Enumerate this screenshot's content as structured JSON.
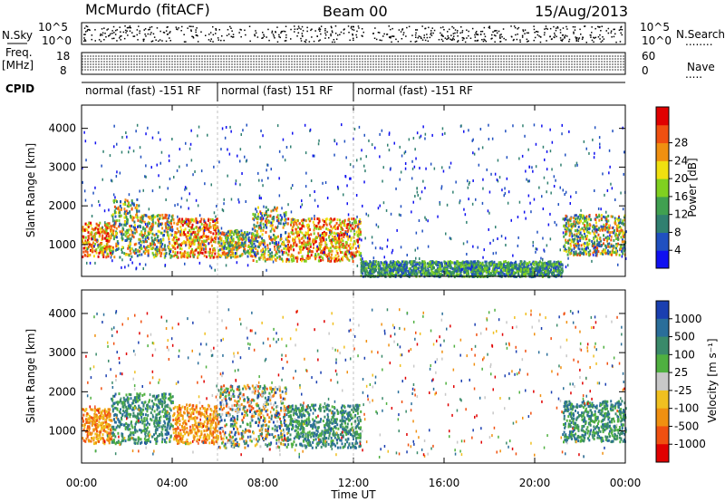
{
  "header": {
    "station": "McMurdo (fitACF)",
    "beam": "Beam 00",
    "date": "15/Aug/2013"
  },
  "side_labels": {
    "nsky": "N.Sky",
    "freq_line1": "Freq.",
    "freq_line2": "[MHz]",
    "cpid": "CPID",
    "nsearch": "N.Search",
    "nsearch_dots": "........",
    "nave": "Nave",
    "nave_dots": "....."
  },
  "noise_panel": {
    "left_ticks": [
      "10^5",
      "10^0"
    ],
    "right_ticks": [
      "10^5",
      "10^0"
    ]
  },
  "freq_panel": {
    "left_ticks": [
      "18",
      "8"
    ],
    "right_ticks": [
      "60",
      "0"
    ]
  },
  "cpid_segments": [
    {
      "label": "normal (fast) -151 RF",
      "start": 0,
      "end": 6
    },
    {
      "label": "normal (fast) 151 RF",
      "start": 6,
      "end": 12
    },
    {
      "label": "normal (fast) -151 RF",
      "start": 12,
      "end": 24
    }
  ],
  "x_axis": {
    "label": "Time UT",
    "ticks": [
      "00:00",
      "04:00",
      "08:00",
      "12:00",
      "16:00",
      "20:00",
      "00:00"
    ],
    "range_hours": [
      0,
      24
    ]
  },
  "y_axis": {
    "label": "Slant Range [km]",
    "ticks": [
      "1000",
      "2000",
      "3000",
      "4000"
    ],
    "range_km": [
      180,
      4600
    ]
  },
  "power_colorbar": {
    "label": "Power [dB]",
    "ticks": [
      "4",
      "8",
      "12",
      "16",
      "20",
      "24",
      "28"
    ],
    "colors": [
      "#1010f0",
      "#2050c0",
      "#308070",
      "#40a050",
      "#80d020",
      "#f0e010",
      "#f09010",
      "#f05010",
      "#e00000"
    ]
  },
  "velocity_colorbar": {
    "label": "Velocity [m s⁻¹]",
    "ticks": [
      "1000",
      "500",
      "100",
      "25",
      "-25",
      "-100",
      "-500",
      "-1000"
    ],
    "colors": [
      "#1a3fb0",
      "#2a6e9a",
      "#3a8a6a",
      "#4fb040",
      "#c8c8c8",
      "#f0c020",
      "#f09010",
      "#f05010",
      "#e00000"
    ]
  },
  "chart_data": {
    "type": "heatmap",
    "title": "McMurdo (fitACF) Beam 00 15/Aug/2013",
    "xlabel": "Time UT",
    "ylabel": "Slant Range [km]",
    "xlim_hours": [
      0,
      24
    ],
    "ylim_km": [
      180,
      4600
    ],
    "panels": [
      {
        "name": "Power [dB]",
        "blobs": [
          {
            "t0": 0.0,
            "t1": 1.3,
            "r0": 700,
            "r1": 1600,
            "level": "high"
          },
          {
            "t0": 1.3,
            "t1": 2.5,
            "r0": 700,
            "r1": 2200,
            "level": "mid"
          },
          {
            "t0": 2.5,
            "t1": 4.0,
            "r0": 700,
            "r1": 1800,
            "level": "mid"
          },
          {
            "t0": 4.0,
            "t1": 6.0,
            "r0": 700,
            "r1": 1700,
            "level": "high"
          },
          {
            "t0": 6.0,
            "t1": 7.5,
            "r0": 700,
            "r1": 1400,
            "level": "mid"
          },
          {
            "t0": 7.5,
            "t1": 9.0,
            "r0": 600,
            "r1": 2000,
            "level": "mid"
          },
          {
            "t0": 9.0,
            "t1": 12.3,
            "r0": 600,
            "r1": 1700,
            "level": "high"
          },
          {
            "t0": 12.3,
            "t1": 21.2,
            "r0": 200,
            "r1": 600,
            "level": "low"
          },
          {
            "t0": 21.2,
            "t1": 24.0,
            "r0": 750,
            "r1": 1800,
            "level": "mid"
          }
        ]
      },
      {
        "name": "Velocity [m s⁻¹]",
        "blobs": [
          {
            "t0": 0.0,
            "t1": 1.3,
            "r0": 700,
            "r1": 1600,
            "level": "negative"
          },
          {
            "t0": 1.3,
            "t1": 4.0,
            "r0": 700,
            "r1": 2000,
            "level": "positive"
          },
          {
            "t0": 4.0,
            "t1": 6.0,
            "r0": 700,
            "r1": 1700,
            "level": "negative"
          },
          {
            "t0": 6.0,
            "t1": 9.0,
            "r0": 600,
            "r1": 2200,
            "level": "mixed"
          },
          {
            "t0": 9.0,
            "t1": 12.3,
            "r0": 600,
            "r1": 1700,
            "level": "positive"
          },
          {
            "t0": 21.2,
            "t1": 24.0,
            "r0": 750,
            "r1": 1800,
            "level": "positive"
          }
        ]
      }
    ]
  }
}
